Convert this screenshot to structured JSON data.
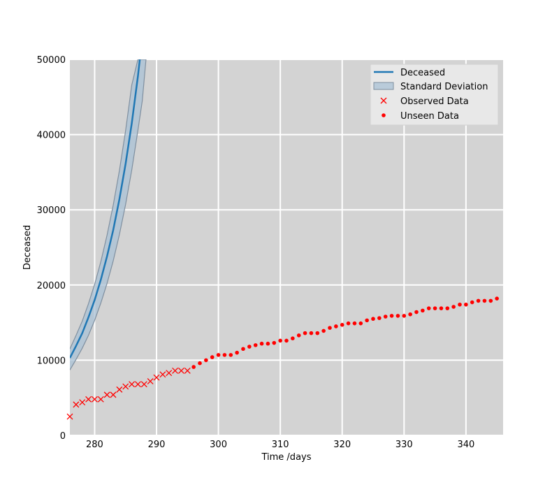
{
  "chart_data": {
    "type": "line",
    "title": "",
    "xlabel": "Time /days",
    "ylabel": "Deceased",
    "xlim": [
      276,
      346
    ],
    "ylim": [
      0,
      50000
    ],
    "x_ticks": [
      280,
      290,
      300,
      310,
      320,
      330,
      340
    ],
    "y_ticks": [
      0,
      10000,
      20000,
      30000,
      40000,
      50000
    ],
    "grid": true,
    "legend_position": "top-right",
    "colors": {
      "background": "#d3d3d3",
      "grid": "#ffffff",
      "model_line": "#1f77b4",
      "band_fill": "#a9c1d6",
      "band_edge": "#7f8f9f",
      "observed": "#ff0000",
      "unseen": "#ff0000"
    },
    "series": [
      {
        "name": "Deceased",
        "kind": "line",
        "x": [
          276,
          277,
          278,
          279,
          280,
          281,
          282,
          283,
          284,
          285,
          286,
          287,
          287.3
        ],
        "y": [
          10300,
          11900,
          13600,
          15700,
          18000,
          20700,
          23800,
          27300,
          31400,
          36100,
          41500,
          47800,
          50000
        ]
      },
      {
        "name": "Standard Deviation",
        "kind": "band",
        "x": [
          276,
          277,
          278,
          279,
          280,
          281,
          282,
          283,
          284,
          285,
          286,
          287,
          287.7,
          288.3
        ],
        "lower": [
          8700,
          10100,
          11600,
          13300,
          15300,
          17600,
          20200,
          23200,
          26700,
          30700,
          35300,
          40600,
          44500,
          50000
        ],
        "upper": [
          11500,
          13300,
          15200,
          17500,
          20100,
          23100,
          26600,
          30600,
          35200,
          40500,
          46600,
          50000,
          50000,
          50000
        ]
      },
      {
        "name": "Observed Data",
        "kind": "scatter",
        "marker": "x",
        "x": [
          276,
          277,
          278,
          279,
          280,
          281,
          282,
          283,
          284,
          285,
          286,
          287,
          288,
          289,
          290,
          291,
          292,
          293,
          294,
          295
        ],
        "y": [
          2500,
          4100,
          4400,
          4800,
          4800,
          4800,
          5400,
          5400,
          6100,
          6500,
          6800,
          6800,
          6800,
          7200,
          7700,
          8100,
          8300,
          8600,
          8600,
          8600
        ]
      },
      {
        "name": "Unseen Data",
        "kind": "scatter",
        "marker": "dot",
        "x": [
          296,
          297,
          298,
          299,
          300,
          301,
          302,
          303,
          304,
          305,
          306,
          307,
          308,
          309,
          310,
          311,
          312,
          313,
          314,
          315,
          316,
          317,
          318,
          319,
          320,
          321,
          322,
          323,
          324,
          325,
          326,
          327,
          328,
          329,
          330,
          331,
          332,
          333,
          334,
          335,
          336,
          337,
          338,
          339,
          340,
          341,
          342,
          343,
          344,
          345
        ],
        "y": [
          9100,
          9600,
          10000,
          10400,
          10700,
          10700,
          10700,
          11000,
          11500,
          11800,
          12000,
          12200,
          12200,
          12300,
          12600,
          12600,
          12900,
          13300,
          13600,
          13600,
          13600,
          13900,
          14300,
          14500,
          14700,
          14900,
          14900,
          14900,
          15300,
          15500,
          15600,
          15800,
          15900,
          15900,
          15900,
          16100,
          16400,
          16600,
          16900,
          16900,
          16900,
          16900,
          17100,
          17400,
          17400,
          17700,
          17900,
          17900,
          17900,
          18200
        ]
      }
    ]
  }
}
